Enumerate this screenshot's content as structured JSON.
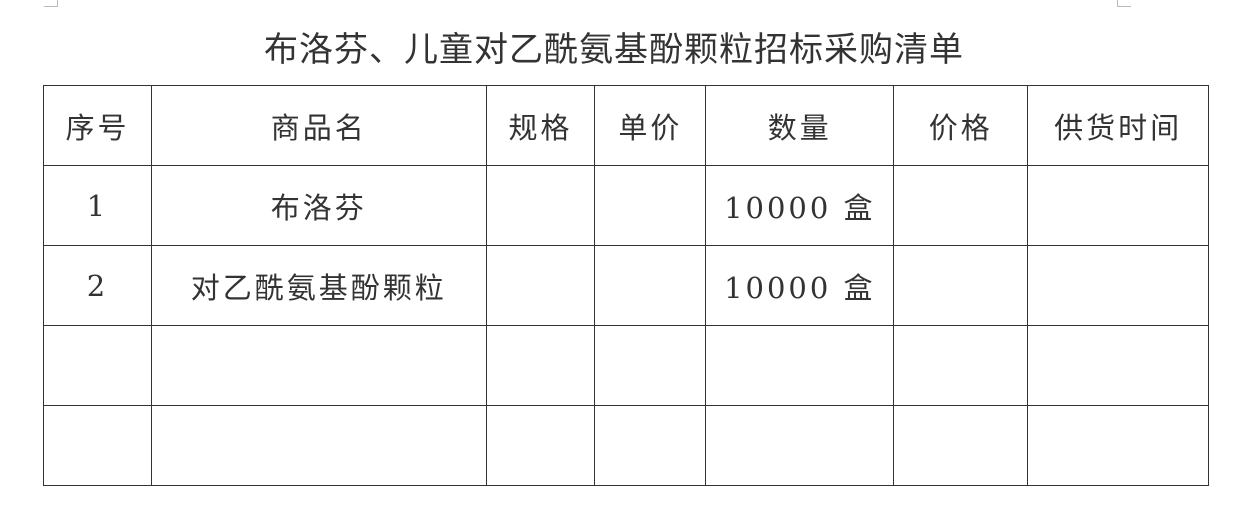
{
  "title": "布洛芬、儿童对乙酰氨基酚颗粒招标采购清单",
  "table": {
    "headers": [
      "序号",
      "商品名",
      "规格",
      "单价",
      "数量",
      "价格",
      "供货时间"
    ],
    "rows": [
      [
        "1",
        "布洛芬",
        "",
        "",
        "10000 盒",
        "",
        ""
      ],
      [
        "2",
        "对乙酰氨基酚颗粒",
        "",
        "",
        "10000 盒",
        "",
        ""
      ],
      [
        "",
        "",
        "",
        "",
        "",
        "",
        ""
      ],
      [
        "",
        "",
        "",
        "",
        "",
        "",
        ""
      ]
    ]
  }
}
